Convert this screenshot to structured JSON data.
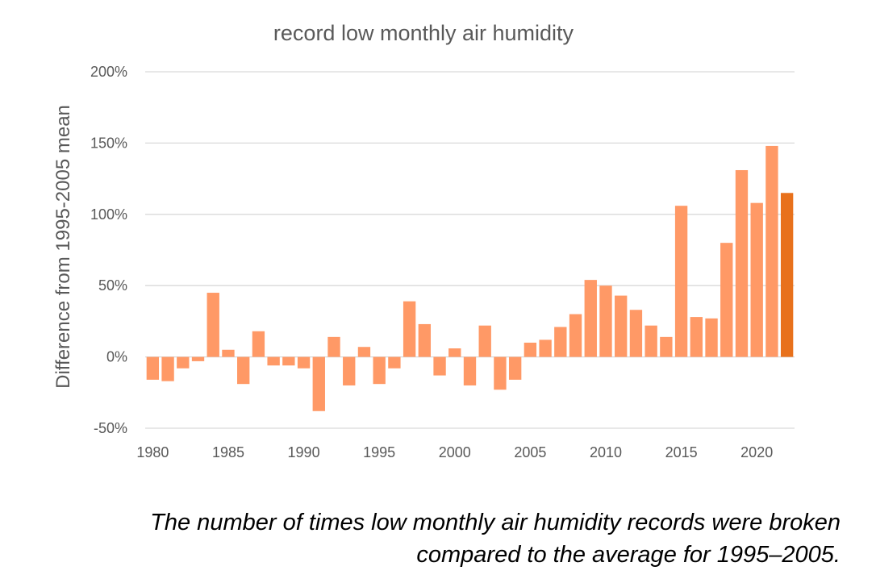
{
  "chart_data": {
    "type": "bar",
    "title": "record low monthly air humidity",
    "ylabel": "Difference from 1995-2005 mean",
    "xlabel": "",
    "ylim": [
      -50,
      200
    ],
    "yticks": [
      "-50%",
      "0%",
      "50%",
      "100%",
      "150%",
      "200%"
    ],
    "ytick_values": [
      -50,
      0,
      50,
      100,
      150,
      200
    ],
    "xticks": [
      "1980",
      "1985",
      "1990",
      "1995",
      "2000",
      "2005",
      "2010",
      "2015",
      "2020"
    ],
    "xtick_values": [
      1980,
      1985,
      1990,
      1995,
      2000,
      2005,
      2010,
      2015,
      2020
    ],
    "grid": true,
    "bar_color": "#FF9966",
    "highlight_color": "#E8711C",
    "highlight_year": 2022,
    "categories": [
      1980,
      1981,
      1982,
      1983,
      1984,
      1985,
      1986,
      1987,
      1988,
      1989,
      1990,
      1991,
      1992,
      1993,
      1994,
      1995,
      1996,
      1997,
      1998,
      1999,
      2000,
      2001,
      2002,
      2003,
      2004,
      2005,
      2006,
      2007,
      2008,
      2009,
      2010,
      2011,
      2012,
      2013,
      2014,
      2015,
      2016,
      2017,
      2018,
      2019,
      2020,
      2021,
      2022
    ],
    "values": [
      -16,
      -17,
      -8,
      -3,
      45,
      5,
      -19,
      18,
      -6,
      -6,
      -8,
      -38,
      14,
      -20,
      7,
      -19,
      -8,
      39,
      23,
      -13,
      6,
      -20,
      22,
      -23,
      -16,
      10,
      12,
      21,
      30,
      54,
      50,
      43,
      33,
      22,
      14,
      106,
      28,
      27,
      80,
      131,
      108,
      148,
      115
    ]
  },
  "caption": {
    "line1": "The number of times low monthly air humidity records were broken",
    "line2": "compared to the average for 1995–2005."
  }
}
